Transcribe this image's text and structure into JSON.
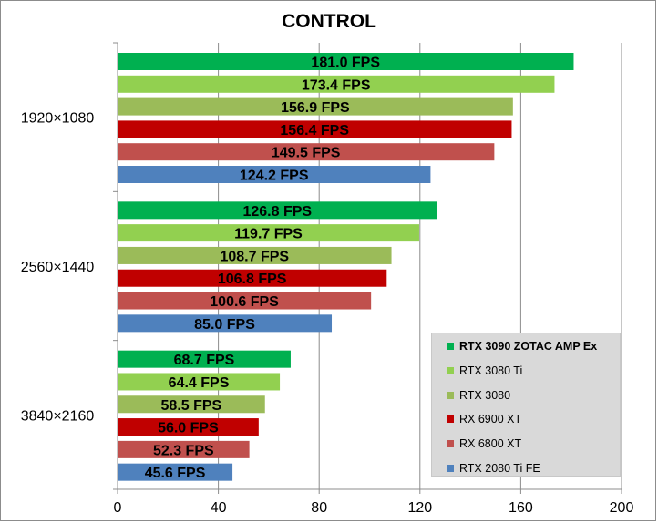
{
  "chart_data": {
    "type": "bar",
    "orientation": "horizontal",
    "title": "CONTROL",
    "categories": [
      "1920×1080",
      "2560×1440",
      "3840×2160"
    ],
    "series": [
      {
        "name": "RTX 3090 ZOTAC AMP Ex",
        "color": "#00b050",
        "values": [
          181.0,
          126.8,
          68.7
        ],
        "labels": [
          "181.0 FPS",
          "126.8 FPS",
          "68.7 FPS"
        ]
      },
      {
        "name": "RTX 3080 Ti",
        "color": "#92d050",
        "values": [
          173.4,
          119.7,
          64.4
        ],
        "labels": [
          "173.4 FPS",
          "119.7 FPS",
          "64.4 FPS"
        ]
      },
      {
        "name": "RTX 3080",
        "color": "#9bbb59",
        "values": [
          156.9,
          108.7,
          58.5
        ],
        "labels": [
          "156.9 FPS",
          "108.7 FPS",
          "58.5 FPS"
        ]
      },
      {
        "name": "RX 6900 XT",
        "color": "#c00000",
        "values": [
          156.4,
          106.8,
          56.0
        ],
        "labels": [
          "156.4 FPS",
          "106.8 FPS",
          "56.0 FPS"
        ]
      },
      {
        "name": "RX 6800 XT",
        "color": "#c0504d",
        "values": [
          149.5,
          100.6,
          52.3
        ],
        "labels": [
          "149.5 FPS",
          "100.6 FPS",
          "52.3 FPS"
        ]
      },
      {
        "name": "RTX 2080 Ti FE",
        "color": "#4f81bd",
        "values": [
          124.2,
          85.0,
          45.6
        ],
        "labels": [
          "124.2 FPS",
          "85.0 FPS",
          "45.6 FPS"
        ]
      }
    ],
    "xlim": [
      0,
      200
    ],
    "xticks": [
      "0",
      "40",
      "80",
      "120",
      "160",
      "200"
    ],
    "grid": true,
    "legend_position": "bottom-right",
    "legend_bold_first": true
  }
}
